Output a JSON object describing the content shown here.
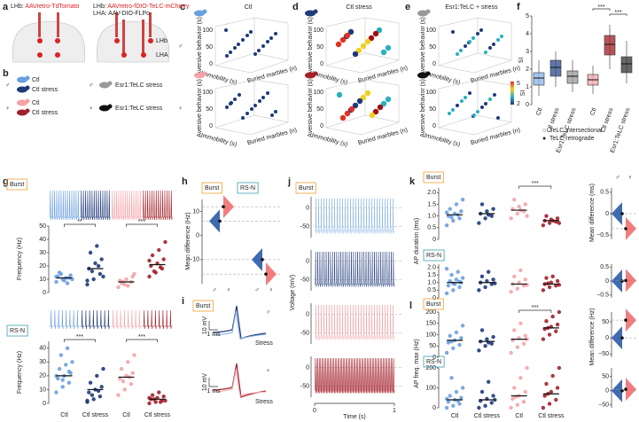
{
  "letters": [
    "a",
    "b",
    "c",
    "d",
    "e",
    "f",
    "g",
    "h",
    "i",
    "j",
    "k",
    "l"
  ],
  "a": {
    "left": {
      "region": "LHb: ",
      "virus": "AAVretro-TdTomato"
    },
    "right": {
      "region": "LHb: ",
      "virus": "AAVretro-fDIO-TeLC-mCherry",
      "region2": "LHA: ",
      "virus2": "AAV-DIO-FLPo"
    },
    "brain_labels": [
      "LHb",
      "LHA"
    ]
  },
  "sex": [
    "♂",
    "♀"
  ],
  "b": {
    "male": [
      "Ctl",
      "Ctl stress"
    ],
    "female": [
      "Ctl",
      "Ctl stress"
    ],
    "telc": "Esr1:TeLC stress"
  },
  "c": {
    "title": "Ctl"
  },
  "d": {
    "title": "Ctl stress"
  },
  "e": {
    "title": "Esr1:TeLC + stress"
  },
  "axes3d": {
    "z": "Aversive behavior (s)",
    "x": "Immobility (s)",
    "y": "Buried marbles (n)",
    "zticks": [
      100,
      50,
      0
    ],
    "colorbar": {
      "label": "SI",
      "ticks": [
        5,
        2
      ]
    }
  },
  "i": {
    "tag": "Burst",
    "scale_v": "10 mV",
    "scale_t": "1 ms",
    "stress": "Stress"
  },
  "j": {
    "tag": "Burst",
    "ylabel": "Voltage (mV)",
    "xlabel": "Time (s)",
    "yticks": [
      0,
      -50
    ],
    "xticks": [
      0,
      1
    ]
  },
  "chart_data": [
    {
      "type": "box",
      "ylabel": "SI",
      "ylim": [
        0,
        5
      ],
      "yticks": [
        0,
        1,
        2,
        3,
        4,
        5
      ],
      "categories": [
        "Ctl",
        "Ctl stress",
        "Esr1:TeLC stress",
        "Ctl",
        "Ctl stress",
        "Esr1:TeLC stress"
      ],
      "colors": [
        "#8ab4ea",
        "#2b4a8a",
        "#9a9a9a",
        "#f2a6a8",
        "#a01c26",
        "#333333"
      ],
      "boxes": [
        {
          "min": 0.5,
          "q1": 1.1,
          "median": 1.5,
          "q3": 1.8,
          "max": 2.5
        },
        {
          "min": 1.0,
          "q1": 1.6,
          "median": 2.1,
          "q3": 2.5,
          "max": 3.0
        },
        {
          "min": 0.7,
          "q1": 1.2,
          "median": 1.6,
          "q3": 1.9,
          "max": 2.5
        },
        {
          "min": 0.6,
          "q1": 1.1,
          "median": 1.4,
          "q3": 1.7,
          "max": 2.2
        },
        {
          "min": 2.0,
          "q1": 2.8,
          "median": 3.4,
          "q3": 3.9,
          "max": 4.5
        },
        {
          "min": 1.2,
          "q1": 1.8,
          "median": 2.3,
          "q3": 2.7,
          "max": 3.6
        }
      ],
      "significance": [
        {
          "label": "***",
          "between": [
            3,
            4
          ]
        },
        {
          "label": "***",
          "between": [
            4,
            5
          ]
        }
      ],
      "legend": [
        {
          "marker": "○",
          "label": "TeLC intersectional"
        },
        {
          "marker": "●",
          "label": "TeLC retrograde"
        }
      ]
    },
    {
      "type": "strip",
      "tag": "Burst",
      "tag_color": "#f0a030",
      "ylabel": "Frequency (Hz)",
      "ylim": [
        0,
        50
      ],
      "yticks": [
        0,
        10,
        20,
        30,
        40,
        50
      ],
      "colors": [
        "#6a9fe0",
        "#1f3a7a",
        "#f4a3a6",
        "#a3202a"
      ],
      "values": [
        [
          8,
          10,
          11,
          12,
          9,
          13,
          15,
          11,
          10,
          14,
          7,
          12
        ],
        [
          6,
          10,
          14,
          18,
          22,
          25,
          30,
          35,
          12,
          16,
          20,
          9
        ],
        [
          4,
          6,
          8,
          9,
          10,
          12,
          7,
          5,
          14,
          8
        ],
        [
          12,
          15,
          18,
          20,
          22,
          25,
          28,
          32,
          38,
          16,
          19,
          24
        ]
      ],
      "means": [
        11,
        18,
        8,
        21
      ],
      "significance": [
        {
          "label": "**",
          "between": [
            0,
            1
          ]
        },
        {
          "label": "***",
          "between": [
            2,
            3
          ]
        }
      ]
    },
    {
      "type": "strip",
      "tag": "RS-N",
      "tag_color": "#3a9db0",
      "ylim": [
        0,
        45
      ],
      "yticks": [
        0,
        10,
        20,
        30,
        40
      ],
      "categories": [
        "Ctl",
        "Ctl stress",
        "Ctl",
        "Ctl stress"
      ],
      "colors": [
        "#6a9fe0",
        "#1f3a7a",
        "#f4a3a6",
        "#a3202a"
      ],
      "values": [
        [
          8,
          12,
          15,
          18,
          20,
          22,
          25,
          28,
          30,
          35,
          40,
          20,
          17,
          23
        ],
        [
          1,
          3,
          5,
          8,
          10,
          12,
          15,
          20,
          25,
          6,
          9,
          2
        ],
        [
          6,
          10,
          14,
          18,
          20,
          22,
          25,
          30,
          35,
          16,
          19
        ],
        [
          0,
          1,
          2,
          3,
          4,
          5,
          6,
          8,
          2,
          3,
          1,
          4
        ]
      ],
      "means": [
        20,
        10,
        19,
        3
      ],
      "significance": [
        {
          "label": "***",
          "between": [
            0,
            1
          ]
        },
        {
          "label": "***",
          "between": [
            2,
            3
          ]
        }
      ]
    },
    {
      "type": "halfviolin",
      "tags": [
        "Burst",
        "RS-N"
      ],
      "tag_colors": [
        "#f0a030",
        "#3a9db0"
      ],
      "ylabel": "Mean difference (Hz)",
      "ylim": [
        -20,
        15
      ],
      "yticks": [
        {
          "value": -10,
          "label": "−10"
        },
        0,
        10
      ],
      "values": [
        6,
        12,
        -10,
        -16
      ],
      "colors": [
        "#2b5aa8",
        "#f07070",
        "#2b5aa8",
        "#f07070"
      ],
      "xlabels": [
        "♂",
        "♀",
        "♂",
        "♀"
      ]
    },
    {
      "type": "strip",
      "tag": "Burst",
      "tag_color": "#f0a030",
      "ylabel": "AP duration (ms)",
      "ylim": [
        0,
        2.2
      ],
      "yticks": [
        0,
        0.5,
        {
          "value": 1,
          "label": "1.0"
        },
        1.5,
        {
          "value": 2,
          "label": "2.0"
        }
      ],
      "colors": [
        "#6a9fe0",
        "#1f3a7a",
        "#f4a3a6",
        "#a3202a"
      ],
      "values": [
        [
          0.6,
          0.8,
          0.9,
          1.0,
          1.1,
          1.2,
          1.3,
          1.5,
          1.7,
          0.95,
          1.05,
          1.15
        ],
        [
          0.7,
          0.9,
          1.0,
          1.1,
          1.2,
          1.3,
          1.5,
          1.05
        ],
        [
          0.9,
          1.1,
          1.2,
          1.3,
          1.4,
          1.5,
          1.7,
          1.25,
          1.0
        ],
        [
          0.6,
          0.7,
          0.75,
          0.8,
          0.85,
          0.9,
          1.0,
          0.8,
          0.7
        ]
      ],
      "means": [
        1.05,
        1.1,
        1.25,
        0.8
      ],
      "significance": [
        {
          "label": "***",
          "between": [
            2,
            3
          ]
        }
      ]
    },
    {
      "type": "strip",
      "tag": "RS-N",
      "tag_color": "#3a9db0",
      "ylim": [
        0,
        2.2
      ],
      "yticks": [
        0,
        0.5,
        {
          "value": 1,
          "label": "1.0"
        },
        1.5,
        {
          "value": 2,
          "label": "2.0"
        }
      ],
      "colors": [
        "#6a9fe0",
        "#1f3a7a",
        "#f4a3a6",
        "#a3202a"
      ],
      "values": [
        [
          0.3,
          0.5,
          0.7,
          0.8,
          0.9,
          1.0,
          1.1,
          1.2,
          1.3,
          1.5,
          1.7,
          1.9,
          0.95,
          1.05
        ],
        [
          0.5,
          0.7,
          0.9,
          1.0,
          1.1,
          1.2,
          1.4,
          1.7,
          0.95
        ],
        [
          0.4,
          0.6,
          0.8,
          0.9,
          1.0,
          1.2,
          1.4,
          1.8,
          0.85
        ],
        [
          0.5,
          0.7,
          0.8,
          0.9,
          1.0,
          1.1,
          1.3,
          1.4,
          0.85,
          0.95
        ]
      ],
      "means": [
        1.0,
        1.0,
        0.9,
        0.9
      ]
    },
    {
      "type": "strip",
      "tag": "Burst",
      "tag_color": "#f0a030",
      "ylabel": "AP freq. max (Hz)",
      "ylim": [
        0,
        200
      ],
      "yticks": [
        0,
        50,
        100,
        150,
        200
      ],
      "colors": [
        "#6a9fe0",
        "#1f3a7a",
        "#f4a3a6",
        "#a3202a"
      ],
      "values": [
        [
          20,
          40,
          55,
          65,
          75,
          85,
          95,
          110,
          140,
          70
        ],
        [
          30,
          50,
          60,
          70,
          80,
          90,
          120,
          65
        ],
        [
          20,
          45,
          60,
          75,
          85,
          95,
          120,
          150,
          80
        ],
        [
          80,
          100,
          115,
          125,
          135,
          145,
          160,
          180,
          200,
          130
        ]
      ],
      "means": [
        75,
        70,
        80,
        130
      ],
      "significance": [
        {
          "label": "***",
          "between": [
            2,
            3
          ]
        }
      ]
    },
    {
      "type": "strip",
      "tag": "RS-N",
      "tag_color": "#3a9db0",
      "ylim": [
        0,
        200
      ],
      "yticks": [
        0,
        100,
        200
      ],
      "categories": [
        "Ctl",
        "Ctl stress",
        "Ctl",
        "Ctl stress"
      ],
      "colors": [
        "#6a9fe0",
        "#1f3a7a",
        "#f4a3a6",
        "#a3202a"
      ],
      "values": [
        [
          0,
          10,
          20,
          30,
          40,
          50,
          60,
          80,
          100,
          150,
          35,
          45
        ],
        [
          0,
          10,
          25,
          35,
          45,
          60,
          80,
          130,
          40
        ],
        [
          0,
          15,
          30,
          45,
          60,
          80,
          100,
          150,
          200,
          55
        ],
        [
          0,
          20,
          40,
          60,
          80,
          100,
          120,
          160,
          200,
          70
        ]
      ],
      "means": [
        40,
        40,
        60,
        70
      ]
    },
    {
      "type": "halfviolin",
      "ylabel": "Mean difference (ms)",
      "ylim": [
        -0.6,
        0.6
      ],
      "yticks": [
        {
          "value": -0.5,
          "label": "−0.5"
        },
        0,
        0.5
      ],
      "values": [
        0,
        -0.35
      ],
      "colors": [
        "#2b5aa8",
        "#f07070"
      ],
      "xlabels": [
        "♂",
        "♀"
      ]
    },
    {
      "type": "halfviolin",
      "ylim": [
        -0.6,
        0.6
      ],
      "yticks": [
        {
          "value": -0.5,
          "label": "−0.5"
        },
        0,
        0.5
      ],
      "values": [
        0,
        0.02
      ],
      "colors": [
        "#2b5aa8",
        "#f07070"
      ]
    },
    {
      "type": "halfviolin",
      "ylabel": "Mean difference (Hz)",
      "ylim": [
        -60,
        80
      ],
      "yticks": [
        {
          "value": -50,
          "label": "−50"
        },
        0,
        50
      ],
      "values": [
        0,
        55
      ],
      "colors": [
        "#2b5aa8",
        "#f07070"
      ]
    },
    {
      "type": "halfviolin",
      "ylim": [
        -60,
        80
      ],
      "yticks": [
        {
          "value": -50,
          "label": "−50"
        },
        0,
        50
      ],
      "values": [
        0,
        5
      ],
      "colors": [
        "#2b5aa8",
        "#f07070"
      ]
    }
  ]
}
